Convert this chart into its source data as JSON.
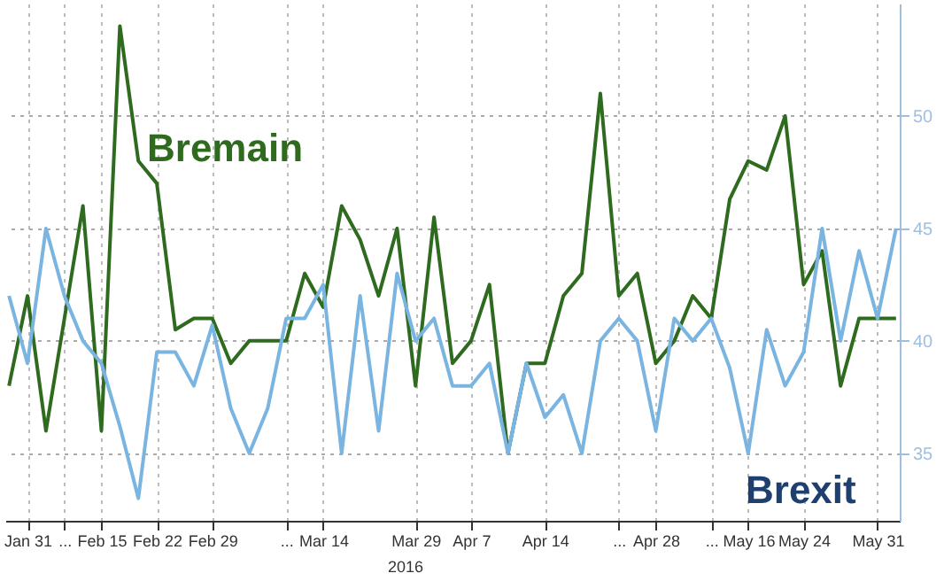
{
  "chart_data": {
    "type": "line",
    "categories": [
      null,
      "Jan 31",
      null,
      "...",
      null,
      "Feb 15",
      null,
      null,
      "Feb 22",
      null,
      null,
      "Feb 29",
      null,
      null,
      null,
      "...",
      null,
      "Mar 14",
      null,
      null,
      null,
      null,
      "Mar 29",
      null,
      null,
      "Apr 7",
      null,
      null,
      null,
      "Apr 14",
      null,
      null,
      null,
      "...",
      null,
      "Apr 28",
      null,
      null,
      "...",
      null,
      "May 16",
      null,
      null,
      "May 24",
      null,
      null,
      null,
      "May 31",
      null
    ],
    "series": [
      {
        "name": "Bremain",
        "color": "#2e6b1f",
        "values": [
          38,
          42,
          36,
          41,
          46,
          36,
          54,
          48,
          47,
          40.5,
          41,
          41,
          39,
          40,
          40,
          40,
          43,
          41.5,
          46,
          44.5,
          42,
          45,
          38,
          45.5,
          39,
          40,
          42.5,
          35,
          39,
          39,
          42,
          43,
          51,
          42,
          43,
          39,
          40,
          42,
          41,
          46.3,
          48,
          47.6,
          50,
          42.5,
          44,
          38,
          41,
          41,
          41
        ]
      },
      {
        "name": "Brexit",
        "color": "#7ab4e0",
        "values": [
          42,
          39,
          45,
          42,
          40,
          39,
          36.2,
          33,
          39.5,
          39.5,
          38,
          40.7,
          37,
          35,
          37,
          41,
          41,
          42.5,
          35,
          42,
          36,
          43,
          40,
          41,
          38,
          38,
          39,
          35,
          39,
          36.6,
          37.6,
          35,
          40,
          41,
          40,
          36,
          41,
          40,
          41,
          38.8,
          35,
          40.5,
          38,
          39.5,
          45,
          40,
          44,
          41,
          45
        ]
      }
    ],
    "ylim": [
      32,
      55
    ],
    "yticks": [
      35,
      40,
      45,
      50
    ],
    "annotations": [
      "2016"
    ],
    "grid": true
  }
}
